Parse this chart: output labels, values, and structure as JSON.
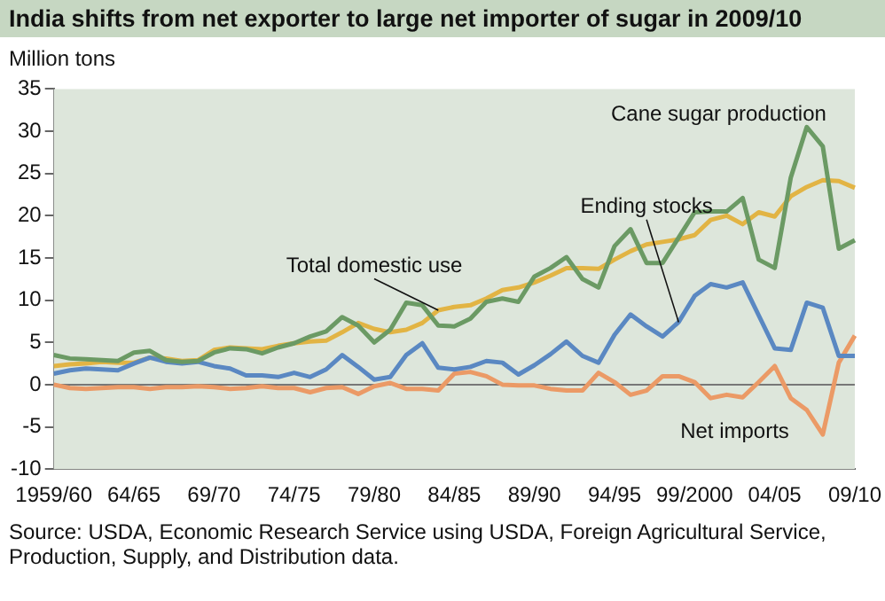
{
  "chart_data": {
    "type": "line",
    "title": "India shifts from net exporter to large net importer of sugar in 2009/10",
    "ylabel": "Million tons",
    "categories": [
      "1959/60",
      null,
      null,
      null,
      null,
      "64/65",
      null,
      null,
      null,
      null,
      "69/70",
      null,
      null,
      null,
      null,
      "74/75",
      null,
      null,
      null,
      null,
      "79/80",
      null,
      null,
      null,
      null,
      "84/85",
      null,
      null,
      null,
      null,
      "89/90",
      null,
      null,
      null,
      null,
      "94/95",
      null,
      null,
      null,
      null,
      "99/2000",
      null,
      null,
      null,
      null,
      "04/05",
      null,
      null,
      null,
      null,
      "09/10"
    ],
    "series": [
      {
        "name": "Cane sugar production",
        "color": "#6b9a64",
        "values": [
          3.5,
          3.1,
          3.0,
          2.9,
          2.8,
          3.8,
          4.0,
          2.9,
          2.7,
          2.8,
          3.8,
          4.3,
          4.2,
          3.7,
          4.4,
          4.9,
          5.7,
          6.3,
          8.0,
          7.0,
          5.0,
          6.5,
          9.7,
          9.4,
          7.0,
          6.9,
          7.8,
          9.8,
          10.2,
          9.8,
          12.8,
          13.8,
          15.1,
          12.5,
          11.5,
          16.4,
          18.4,
          14.4,
          14.4,
          17.4,
          20.4,
          20.5,
          20.5,
          22.1,
          14.8,
          13.8,
          24.5,
          30.5,
          28.2,
          16.1,
          17.1
        ]
      },
      {
        "name": "Ending stocks",
        "color": "#5a88c2",
        "values": [
          1.3,
          1.7,
          1.9,
          1.8,
          1.7,
          2.5,
          3.2,
          2.7,
          2.5,
          2.7,
          2.2,
          1.9,
          1.1,
          1.1,
          0.9,
          1.4,
          0.9,
          1.8,
          3.5,
          2.1,
          0.6,
          0.9,
          3.5,
          4.9,
          2.0,
          1.8,
          2.1,
          2.8,
          2.6,
          1.2,
          2.3,
          3.6,
          5.1,
          3.4,
          2.6,
          5.9,
          8.3,
          6.9,
          5.7,
          7.4,
          10.5,
          11.9,
          11.5,
          12.1,
          8.2,
          4.3,
          4.1,
          9.7,
          9.1,
          3.4,
          3.4
        ]
      },
      {
        "name": "Total domestic use",
        "color": "#e2b444",
        "values": [
          2.2,
          2.4,
          2.5,
          2.7,
          2.6,
          2.6,
          3.2,
          3.1,
          2.8,
          2.9,
          4.1,
          4.4,
          4.3,
          4.2,
          4.6,
          4.9,
          5.1,
          5.2,
          6.2,
          7.3,
          6.6,
          6.2,
          6.5,
          7.3,
          8.8,
          9.2,
          9.4,
          10.2,
          11.2,
          11.5,
          12.1,
          12.9,
          13.8,
          13.8,
          13.7,
          14.8,
          15.8,
          16.6,
          16.9,
          17.2,
          17.7,
          19.5,
          20.0,
          19.0,
          20.4,
          19.9,
          22.3,
          23.4,
          24.2,
          24.1,
          23.3
        ]
      },
      {
        "name": "Net imports",
        "color": "#eb9a66",
        "values": [
          0,
          -0.4,
          -0.5,
          -0.4,
          -0.3,
          -0.3,
          -0.5,
          -0.3,
          -0.3,
          -0.2,
          -0.3,
          -0.5,
          -0.4,
          -0.2,
          -0.4,
          -0.4,
          -0.9,
          -0.4,
          -0.3,
          -1.1,
          -0.2,
          0.2,
          -0.5,
          -0.5,
          -0.7,
          1.3,
          1.5,
          1.0,
          0,
          -0.1,
          -0.1,
          -0.5,
          -0.7,
          -0.7,
          1.4,
          0.3,
          -1.2,
          -0.7,
          1.0,
          1.0,
          0.3,
          -1.6,
          -1.2,
          -1.5,
          0.3,
          2.2,
          -1.6,
          -3.0,
          -5.9,
          2.6,
          5.8
        ]
      }
    ],
    "ylim": [
      -10,
      35
    ],
    "yticks": [
      -10,
      -5,
      0,
      5,
      10,
      15,
      20,
      25,
      30,
      35
    ],
    "grid": false,
    "legend": false,
    "ref_lines": [
      {
        "axis": "y",
        "value": 0,
        "color": "#777777"
      }
    ],
    "annotations": [
      "Source: USDA, Economic Research Service using USDA, Foreign Agricultural Service, Production, Supply, and Distribution data."
    ]
  }
}
